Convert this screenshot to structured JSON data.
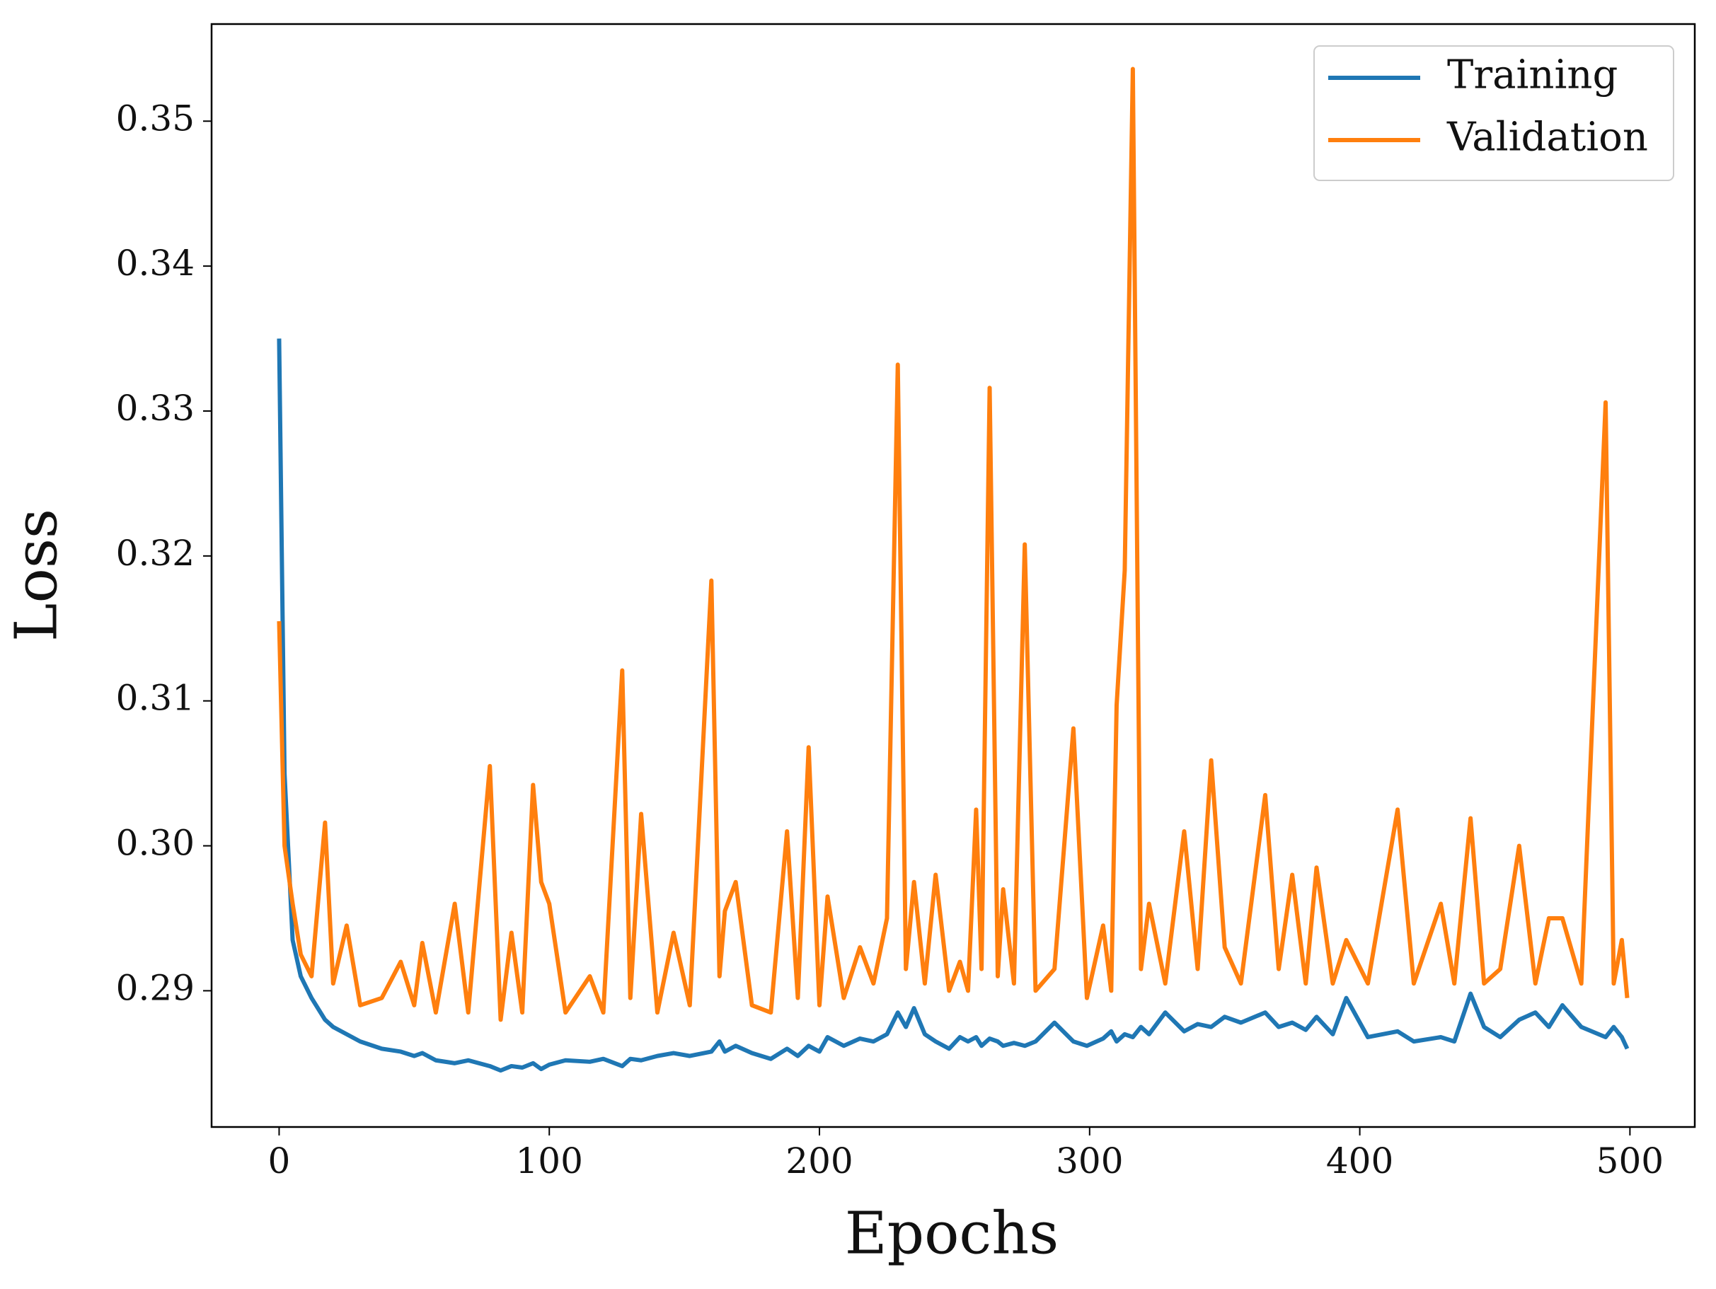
{
  "chart_data": {
    "type": "line",
    "x_label": "Epochs",
    "y_label": "Loss",
    "x": [
      0,
      2,
      5,
      8,
      12,
      17,
      20,
      25,
      30,
      38,
      45,
      50,
      53,
      58,
      65,
      70,
      78,
      82,
      86,
      90,
      94,
      97,
      100,
      106,
      115,
      120,
      127,
      130,
      134,
      140,
      146,
      152,
      160,
      163,
      165,
      169,
      175,
      182,
      188,
      192,
      196,
      200,
      203,
      209,
      215,
      220,
      225,
      229,
      232,
      235,
      239,
      243,
      248,
      252,
      255,
      258,
      260,
      263,
      266,
      268,
      272,
      276,
      280,
      287,
      294,
      299,
      305,
      308,
      310,
      313,
      316,
      319,
      322,
      328,
      335,
      340,
      345,
      350,
      356,
      365,
      370,
      375,
      380,
      384,
      390,
      395,
      403,
      414,
      420,
      430,
      435,
      441,
      446,
      452,
      459,
      465,
      470,
      475,
      482,
      491,
      494,
      497,
      499
    ],
    "series": [
      {
        "name": "Training",
        "color": "#1f77b4",
        "values": [
          0.335,
          0.305,
          0.2935,
          0.291,
          0.2895,
          0.288,
          0.2875,
          0.287,
          0.2865,
          0.286,
          0.2858,
          0.2855,
          0.2857,
          0.2852,
          0.285,
          0.2852,
          0.2848,
          0.2845,
          0.2848,
          0.2847,
          0.285,
          0.2846,
          0.2849,
          0.2852,
          0.2851,
          0.2853,
          0.2848,
          0.2853,
          0.2852,
          0.2855,
          0.2857,
          0.2855,
          0.2858,
          0.2865,
          0.2858,
          0.2862,
          0.2857,
          0.2853,
          0.286,
          0.2855,
          0.2862,
          0.2858,
          0.2868,
          0.2862,
          0.2867,
          0.2865,
          0.287,
          0.2885,
          0.2875,
          0.2888,
          0.287,
          0.2865,
          0.286,
          0.2868,
          0.2865,
          0.2868,
          0.2862,
          0.2867,
          0.2865,
          0.2862,
          0.2864,
          0.2862,
          0.2865,
          0.2878,
          0.2865,
          0.2862,
          0.2867,
          0.2872,
          0.2865,
          0.287,
          0.2868,
          0.2875,
          0.287,
          0.2885,
          0.2872,
          0.2877,
          0.2875,
          0.2882,
          0.2878,
          0.2885,
          0.2875,
          0.2878,
          0.2873,
          0.2882,
          0.287,
          0.2895,
          0.2868,
          0.2872,
          0.2865,
          0.2868,
          0.2865,
          0.2898,
          0.2875,
          0.2868,
          0.288,
          0.2885,
          0.2875,
          0.289,
          0.2875,
          0.2868,
          0.2875,
          0.2868,
          0.286
        ]
      },
      {
        "name": "Validation",
        "color": "#ff7f0e",
        "values": [
          0.3155,
          0.3,
          0.296,
          0.2925,
          0.291,
          0.3016,
          0.2905,
          0.2945,
          0.289,
          0.2895,
          0.292,
          0.289,
          0.2933,
          0.2885,
          0.296,
          0.2885,
          0.3055,
          0.288,
          0.294,
          0.2885,
          0.3042,
          0.2975,
          0.296,
          0.2885,
          0.291,
          0.2885,
          0.3121,
          0.2895,
          0.3022,
          0.2885,
          0.294,
          0.289,
          0.3183,
          0.291,
          0.2955,
          0.2975,
          0.289,
          0.2885,
          0.301,
          0.2895,
          0.3068,
          0.289,
          0.2965,
          0.2895,
          0.293,
          0.2905,
          0.295,
          0.3332,
          0.2915,
          0.2975,
          0.2905,
          0.298,
          0.29,
          0.292,
          0.29,
          0.3025,
          0.2915,
          0.3316,
          0.291,
          0.297,
          0.2905,
          0.3208,
          0.29,
          0.2915,
          0.3081,
          0.2895,
          0.2945,
          0.29,
          0.3097,
          0.319,
          0.3536,
          0.2915,
          0.296,
          0.2905,
          0.301,
          0.2915,
          0.3059,
          0.293,
          0.2905,
          0.3035,
          0.2915,
          0.298,
          0.2905,
          0.2985,
          0.2905,
          0.2935,
          0.2905,
          0.3025,
          0.2905,
          0.296,
          0.2905,
          0.3019,
          0.2905,
          0.2915,
          0.3,
          0.2905,
          0.295,
          0.295,
          0.2905,
          0.3306,
          0.2905,
          0.2935,
          0.2895
        ]
      }
    ],
    "xlim": [
      -25,
      524
    ],
    "xticks": [
      0,
      100,
      200,
      300,
      400,
      500
    ],
    "ylim": [
      0.2806,
      0.3567
    ],
    "yticks": [
      0.29,
      {
        "value": 0.3,
        "label": "0.30"
      },
      0.31,
      0.32,
      0.33,
      0.34,
      0.35
    ],
    "legend": "upper right",
    "grid": false
  }
}
